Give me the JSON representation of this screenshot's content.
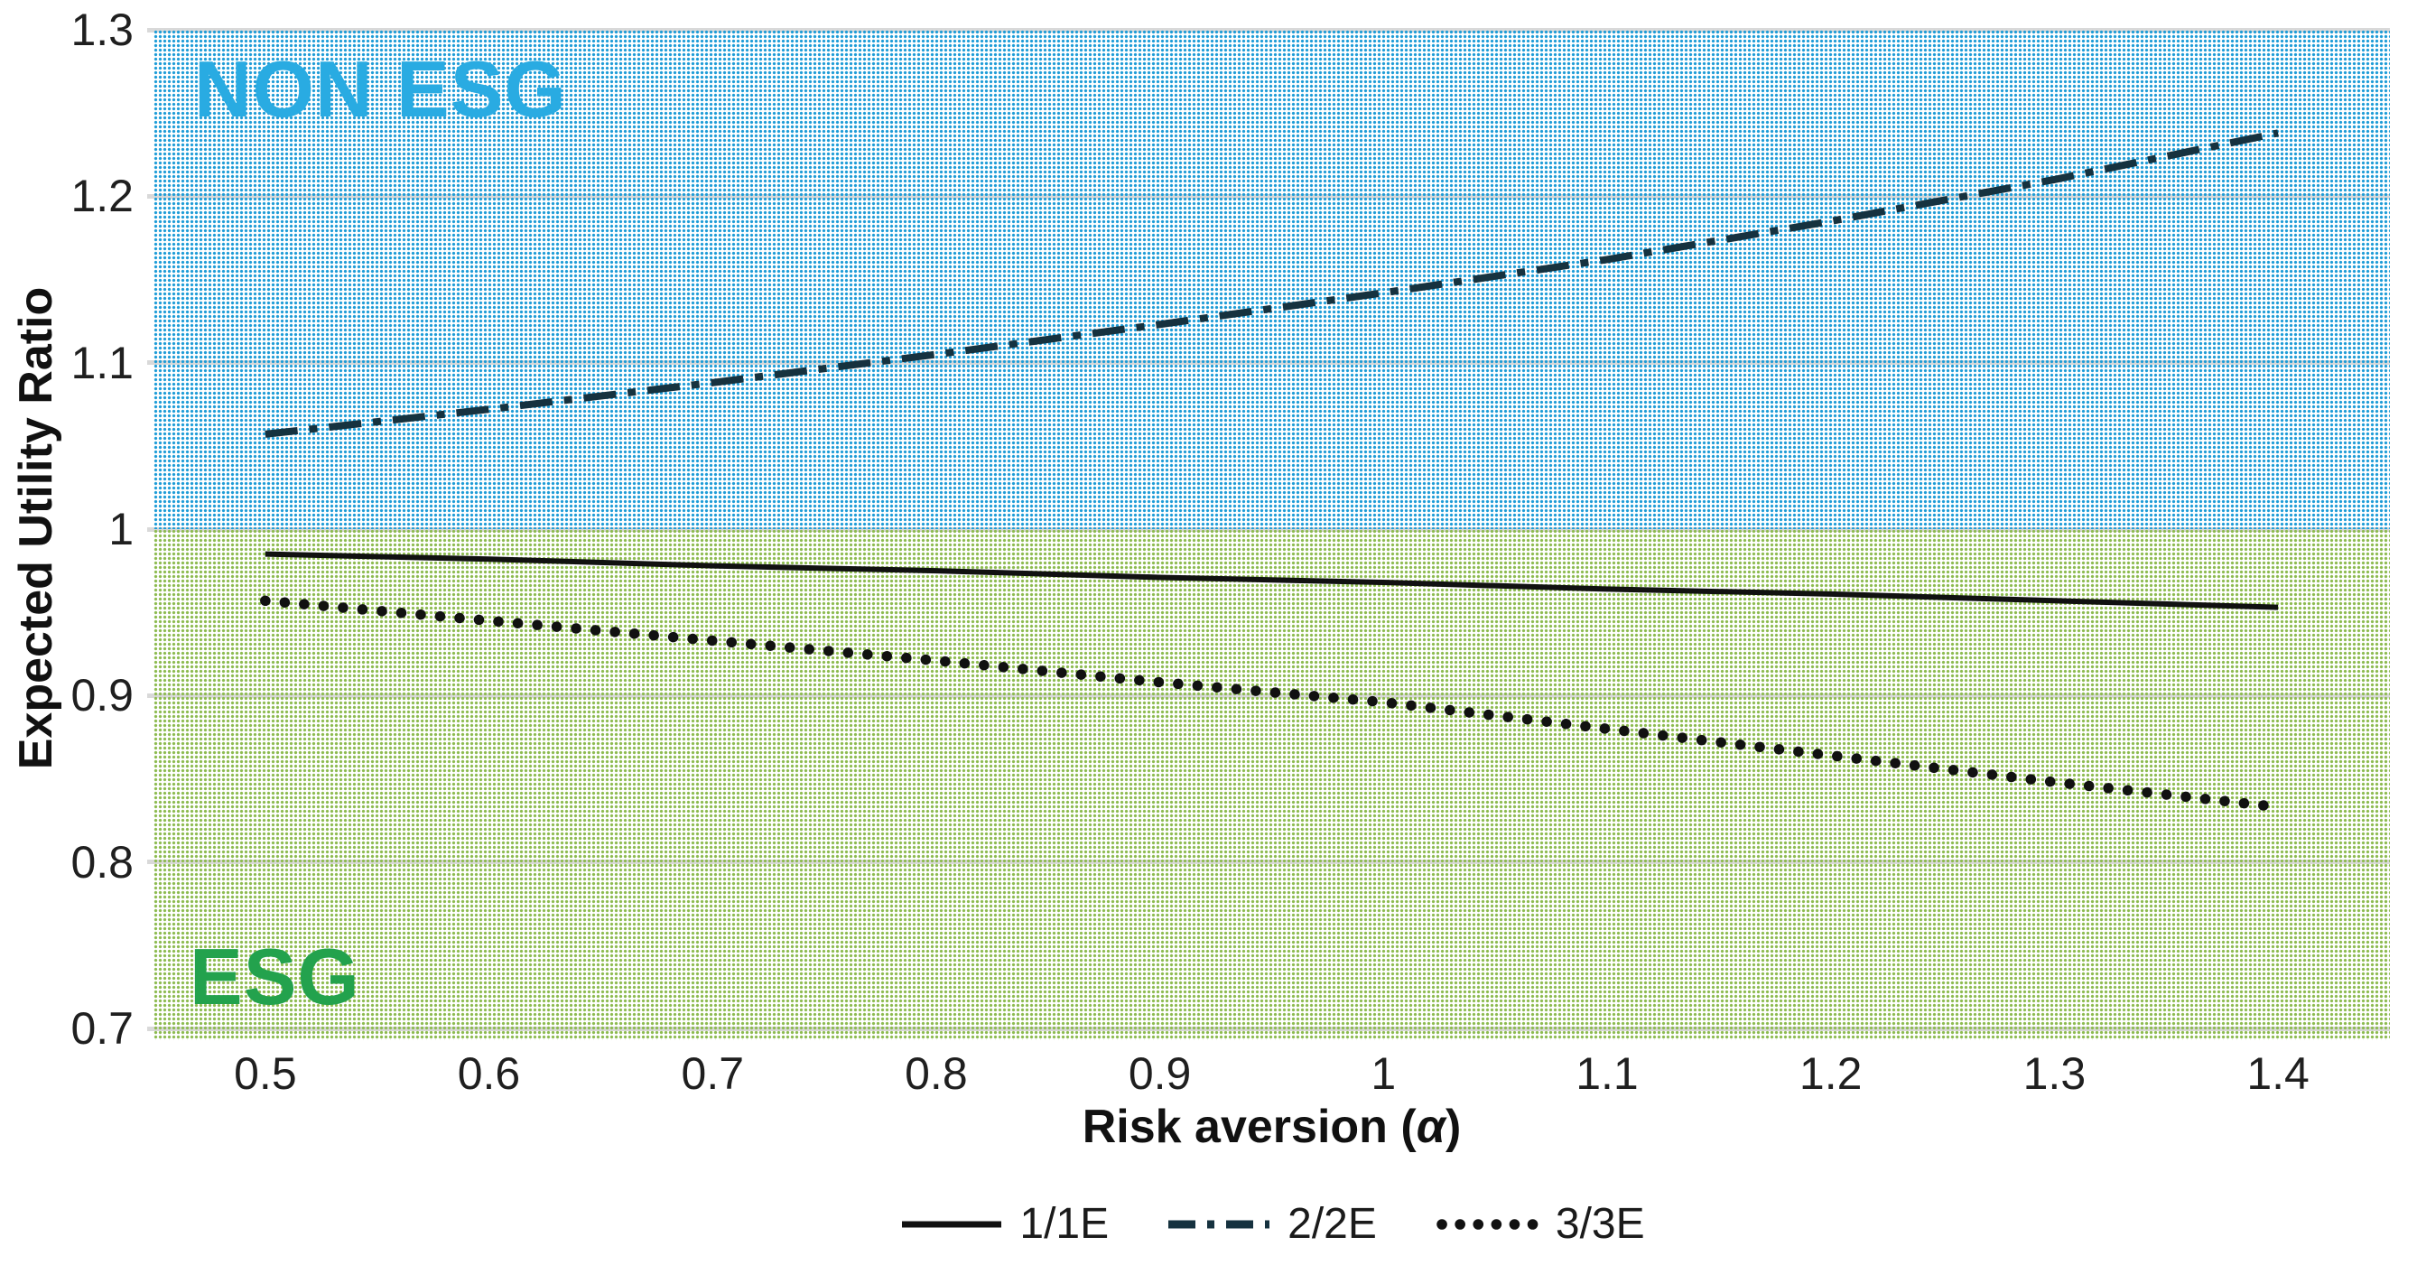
{
  "chart_data": {
    "type": "line",
    "title": "",
    "ylabel": "Expected Utility Ratio",
    "xlabel_prefix": "Risk aversion (",
    "xlabel_alpha": "α",
    "xlabel_suffix": ")",
    "categories": [
      "0.5",
      "0.6",
      "0.7",
      "0.8",
      "0.9",
      "1",
      "1.1",
      "1.2",
      "1.3",
      "1.4"
    ],
    "x_values": [
      0.5,
      0.6,
      0.7,
      0.8,
      0.9,
      1.0,
      1.1,
      1.2,
      1.3,
      1.4
    ],
    "y_tick_values": [
      1.3,
      1.2,
      1.1,
      1.0,
      0.9,
      0.8,
      0.7
    ],
    "y_tick_labels": [
      "1.3",
      "1.2",
      "1.1",
      "1",
      "0.9",
      "0.8",
      "0.7"
    ],
    "ylim": [
      0.7,
      1.3
    ],
    "grid": true,
    "legend_position": "bottom",
    "series": [
      {
        "name": "1/1E",
        "line_style": "solid",
        "color": "#111111",
        "values": [
          0.985,
          0.982,
          0.978,
          0.975,
          0.971,
          0.968,
          0.964,
          0.961,
          0.957,
          0.953
        ]
      },
      {
        "name": "2/2E",
        "line_style": "dash-dot",
        "color": "#16323f",
        "values": [
          1.057,
          1.072,
          1.088,
          1.105,
          1.123,
          1.142,
          1.162,
          1.185,
          1.21,
          1.238
        ]
      },
      {
        "name": "3/3E",
        "line_style": "dotted",
        "color": "#111111",
        "values": [
          0.957,
          0.945,
          0.933,
          0.921,
          0.908,
          0.896,
          0.88,
          0.864,
          0.848,
          0.833
        ]
      }
    ],
    "regions": [
      {
        "label": "NON ESG",
        "label_color": "#29abe2",
        "y_from": 1.0,
        "y_to": 1.3,
        "pattern_dot_color": "#1e9cd7"
      },
      {
        "label": "ESG",
        "label_color": "#23a24d",
        "y_from": 0.7,
        "y_to": 1.0,
        "pattern_dot_color": "#8dbb50"
      }
    ],
    "colors": {
      "gridline": "#d9d9d9",
      "axis_text": "#1f1f1f"
    }
  }
}
